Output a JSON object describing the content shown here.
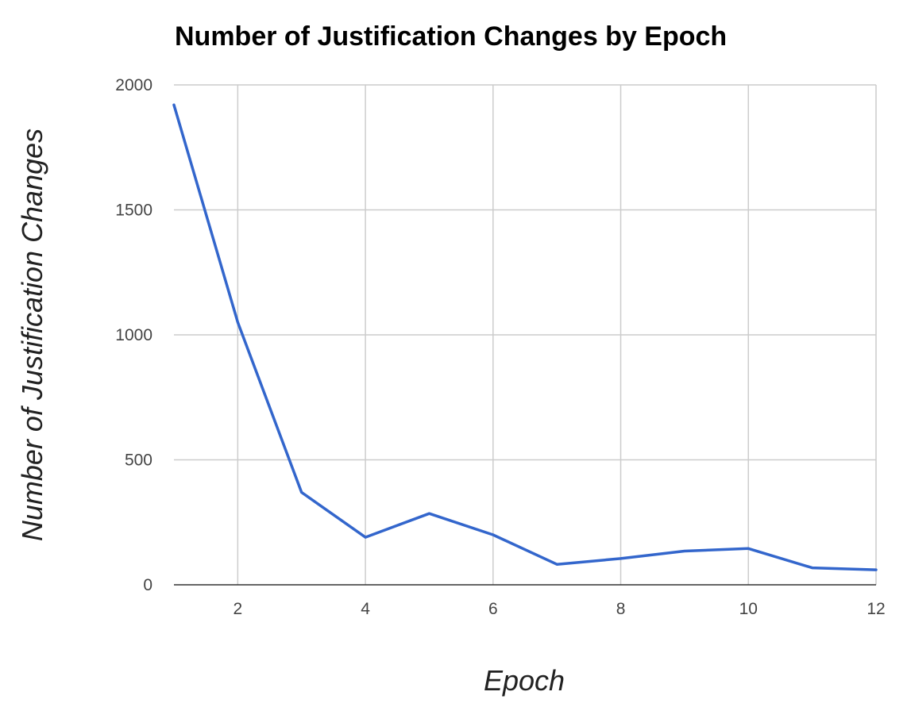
{
  "chart_data": {
    "type": "line",
    "title": "Number of Justification Changes by Epoch",
    "xlabel": "Epoch",
    "ylabel": "Number of Justification Changes",
    "x": [
      1,
      2,
      3,
      4,
      5,
      6,
      7,
      8,
      9,
      10,
      11,
      12
    ],
    "series": [
      {
        "values": [
          1920,
          1050,
          370,
          190,
          285,
          200,
          82,
          105,
          135,
          145,
          68,
          60
        ],
        "color": "#3366cc"
      }
    ],
    "xlim": [
      1,
      12
    ],
    "ylim": [
      0,
      2000
    ],
    "xticks": [
      2,
      4,
      6,
      8,
      10,
      12
    ],
    "yticks": [
      0,
      500,
      1000,
      1500,
      2000
    ],
    "grid": true,
    "legend": "none"
  }
}
